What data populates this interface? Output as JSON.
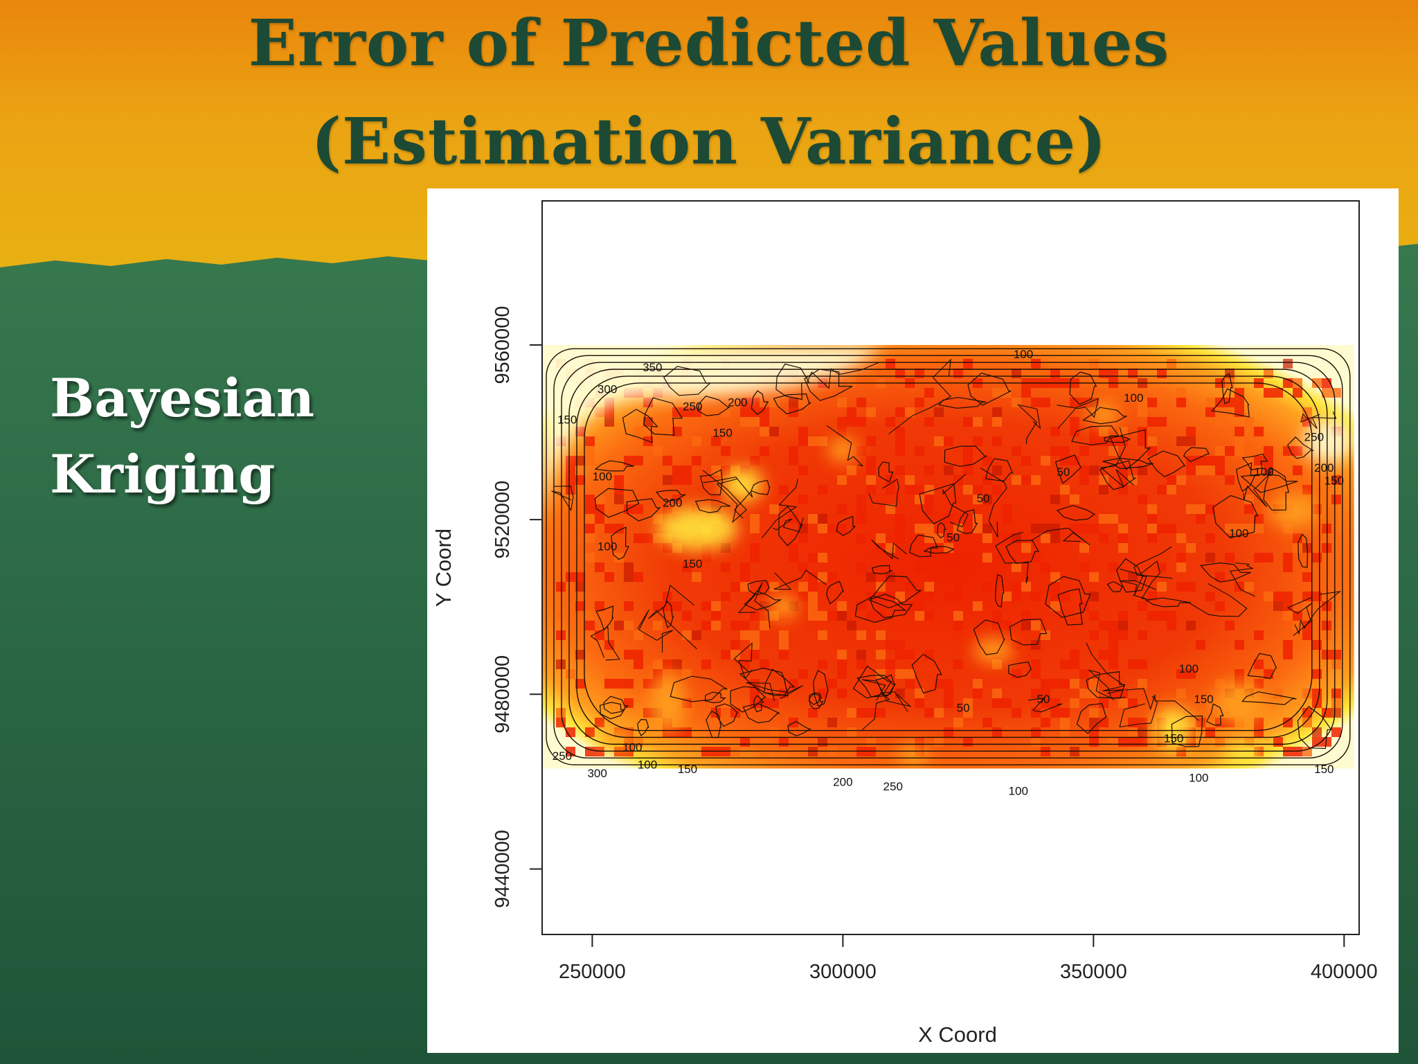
{
  "slide": {
    "title_line1": "Error of Predicted Values",
    "title_line2": "(Estimation Variance)",
    "side_label_line1": "Bayesian",
    "side_label_line2": "Kriging"
  },
  "colors": {
    "title_band": "#e8a512",
    "background": "#2b6a45",
    "title_text": "#1d4a34",
    "low_variance": "#ee2200",
    "high_variance": "#fffbd0"
  },
  "chart_data": {
    "type": "heatmap",
    "title": "",
    "xlabel": "X Coord",
    "ylabel": "Y Coord",
    "xlim": [
      240000,
      403000
    ],
    "ylim": [
      9425000,
      9593000
    ],
    "x_ticks": [
      250000,
      300000,
      350000,
      400000
    ],
    "x_tick_labels": [
      "250000",
      "300000",
      "350000",
      "400000"
    ],
    "y_ticks": [
      9440000,
      9480000,
      9520000,
      9560000
    ],
    "y_tick_labels": [
      "9440000",
      "9480000",
      "9520000",
      "9560000"
    ],
    "grid_extent": {
      "x": [
        240000,
        402000
      ],
      "y": [
        9463000,
        9560000
      ]
    },
    "grid": false,
    "legend": "none",
    "color_scale": [
      "#ee2200",
      "#fb6a10",
      "#ffa020",
      "#ffe43a",
      "#fffbd0"
    ],
    "contour_levels": [
      50,
      100,
      150,
      200,
      250,
      300,
      350
    ],
    "contour_labels": [
      {
        "value": "350",
        "x": 262000,
        "y": 9554000
      },
      {
        "value": "300",
        "x": 253000,
        "y": 9549000
      },
      {
        "value": "250",
        "x": 270000,
        "y": 9545000
      },
      {
        "value": "200",
        "x": 279000,
        "y": 9546000
      },
      {
        "value": "150",
        "x": 245000,
        "y": 9542000
      },
      {
        "value": "150",
        "x": 276000,
        "y": 9539000
      },
      {
        "value": "100",
        "x": 252000,
        "y": 9529000
      },
      {
        "value": "200",
        "x": 266000,
        "y": 9523000
      },
      {
        "value": "150",
        "x": 270000,
        "y": 9509000
      },
      {
        "value": "100",
        "x": 253000,
        "y": 9513000
      },
      {
        "value": "100",
        "x": 336000,
        "y": 9557000
      },
      {
        "value": "100",
        "x": 358000,
        "y": 9547000
      },
      {
        "value": "250",
        "x": 394000,
        "y": 9538000
      },
      {
        "value": "200",
        "x": 396000,
        "y": 9531000
      },
      {
        "value": "100",
        "x": 384000,
        "y": 9530000
      },
      {
        "value": "150",
        "x": 398000,
        "y": 9528000
      },
      {
        "value": "100",
        "x": 379000,
        "y": 9516000
      },
      {
        "value": "50",
        "x": 328000,
        "y": 9524000
      },
      {
        "value": "50",
        "x": 344000,
        "y": 9530000
      },
      {
        "value": "50",
        "x": 322000,
        "y": 9515000
      },
      {
        "value": "50",
        "x": 340000,
        "y": 9478000
      },
      {
        "value": "50",
        "x": 324000,
        "y": 9476000
      },
      {
        "value": "100",
        "x": 369000,
        "y": 9485000
      },
      {
        "value": "150",
        "x": 372000,
        "y": 9478000
      },
      {
        "value": "150",
        "x": 366000,
        "y": 9469000
      },
      {
        "value": "100",
        "x": 258000,
        "y": 9467000
      },
      {
        "value": "150",
        "x": 269000,
        "y": 9462000
      },
      {
        "value": "100",
        "x": 261000,
        "y": 9463000
      },
      {
        "value": "250",
        "x": 244000,
        "y": 9465000
      },
      {
        "value": "300",
        "x": 251000,
        "y": 9461000
      },
      {
        "value": "200",
        "x": 300000,
        "y": 9459000
      },
      {
        "value": "250",
        "x": 310000,
        "y": 9458000
      },
      {
        "value": "100",
        "x": 335000,
        "y": 9457000
      },
      {
        "value": "150",
        "x": 396000,
        "y": 9462000
      },
      {
        "value": "100",
        "x": 371000,
        "y": 9460000
      }
    ]
  }
}
